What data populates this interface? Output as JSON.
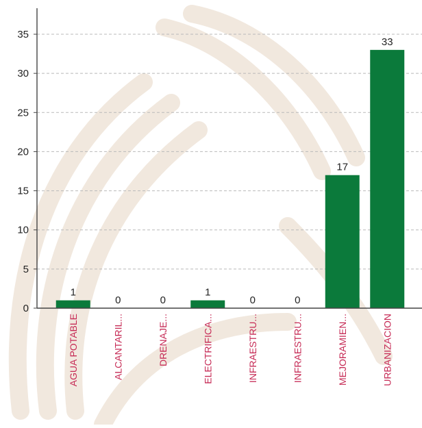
{
  "colors": {
    "bar": "#0b7a3b",
    "label_text": "#c62a55",
    "axis_text": "#222222",
    "grid": "#b9b9b9",
    "watermark": "#efe4d8"
  },
  "chart_data": {
    "type": "bar",
    "categories": [
      "AGUA POTABLE",
      "ALCANTARIL...",
      "DRENAJE...",
      "ELECTRIFICA...",
      "INFRAESTRU...",
      "INFRAESTRU...",
      "MEJORAMIEN...",
      "URBANIZACION"
    ],
    "values": [
      1,
      0,
      0,
      1,
      0,
      0,
      17,
      33
    ],
    "data_labels": [
      "1",
      "0",
      "0",
      "1",
      "0",
      "0",
      "17",
      "33"
    ],
    "yticks": [
      "0",
      "5",
      "10",
      "15",
      "20",
      "25",
      "30",
      "35"
    ],
    "ylim": [
      0,
      35
    ],
    "grid": true,
    "title": "",
    "xlabel": "",
    "ylabel": ""
  }
}
